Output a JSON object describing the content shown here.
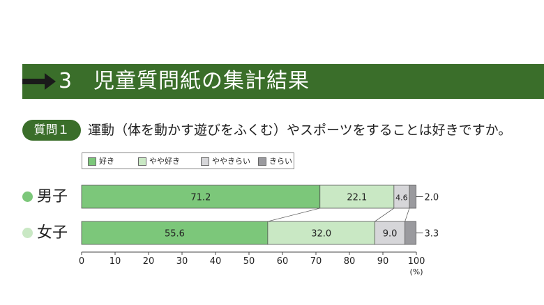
{
  "section": {
    "number": "3",
    "title": "児童質問紙の集計結果"
  },
  "question": {
    "badge": "質問１",
    "text": "運動（体を動かす遊びをふくむ）やスポーツをすることは好きですか。"
  },
  "colors": {
    "header": "#3a6e2a",
    "like": "#7cc77a",
    "somewhat_like": "#c9e8c4",
    "somewhat_dislike": "#d6d6d9",
    "dislike": "#9a9a9e",
    "boy_dot": "#7cc77a",
    "girl_dot": "#c9e8c4"
  },
  "chart_data": {
    "type": "bar",
    "orientation": "horizontal",
    "stacked": true,
    "categories": [
      "男子",
      "女子"
    ],
    "series": [
      {
        "name": "好き",
        "values": [
          71.2,
          55.6
        ]
      },
      {
        "name": "やや好き",
        "values": [
          22.1,
          32.0
        ]
      },
      {
        "name": "ややきらい",
        "values": [
          4.6,
          9.0
        ]
      },
      {
        "name": "きらい",
        "values": [
          2.0,
          3.3
        ]
      }
    ],
    "value_labels": [
      [
        "71.2",
        "22.1",
        "4.6",
        "2.0"
      ],
      [
        "55.6",
        "32.0",
        "9.0",
        "3.3"
      ]
    ],
    "xlim": [
      0,
      100
    ],
    "xticks": [
      "0",
      "10",
      "20",
      "30",
      "40",
      "50",
      "60",
      "70",
      "80",
      "90",
      "100"
    ],
    "xunit": "(%)",
    "legend_position": "top-left",
    "grid": false
  }
}
